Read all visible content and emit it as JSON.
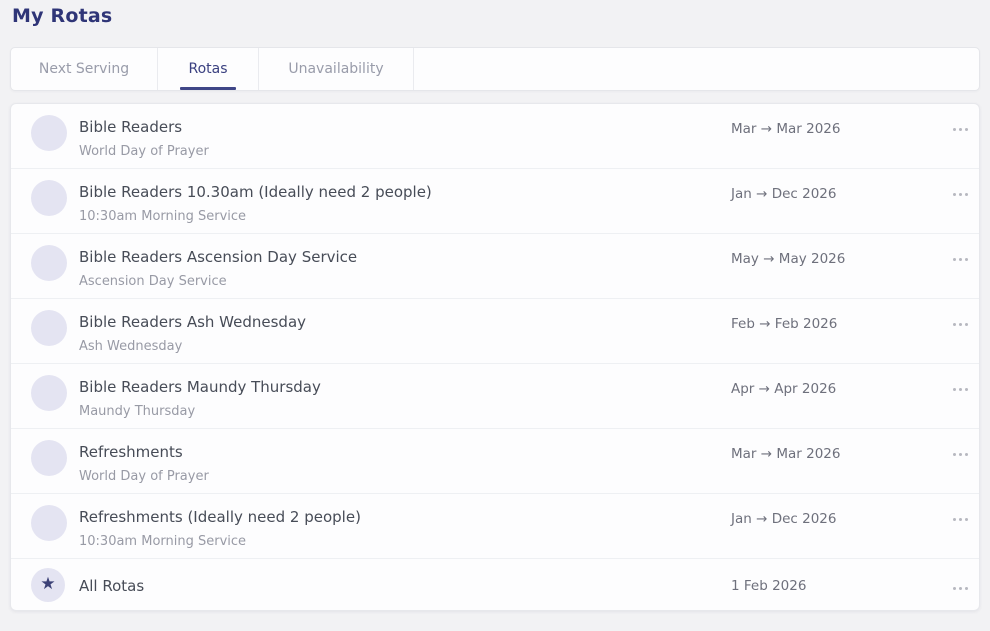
{
  "page": {
    "title": "My Rotas"
  },
  "tabs": {
    "items": [
      {
        "label": "Next Serving",
        "active": false
      },
      {
        "label": "Rotas",
        "active": true
      },
      {
        "label": "Unavailability",
        "active": false
      }
    ]
  },
  "rotas": [
    {
      "title": "Bible Readers",
      "subtitle": "World Day of Prayer",
      "dates": "Mar → Mar 2026"
    },
    {
      "title": "Bible Readers 10.30am (Ideally need 2 people)",
      "subtitle": "10:30am Morning Service",
      "dates": "Jan → Dec 2026"
    },
    {
      "title": "Bible Readers Ascension Day Service",
      "subtitle": "Ascension Day Service",
      "dates": "May → May 2026"
    },
    {
      "title": "Bible Readers Ash Wednesday",
      "subtitle": "Ash Wednesday",
      "dates": "Feb → Feb 2026"
    },
    {
      "title": "Bible Readers Maundy Thursday",
      "subtitle": "Maundy Thursday",
      "dates": "Apr → Apr 2026"
    },
    {
      "title": "Refreshments",
      "subtitle": "World Day of Prayer",
      "dates": "Mar → Mar 2026"
    },
    {
      "title": "Refreshments (Ideally need 2 people)",
      "subtitle": "10:30am Morning Service",
      "dates": "Jan → Dec 2026"
    }
  ],
  "all_rotas": {
    "title": "All Rotas",
    "date": "1 Feb 2026"
  },
  "icons": {
    "all_rotas_avatar": "star-icon",
    "row_menu": "ellipsis-icon",
    "star_glyph": "★"
  },
  "colors": {
    "navy_heading": "#2f3577",
    "active_tab_text": "#3a4080",
    "active_tab_underline": "#3f4687",
    "inactive_tab_text": "#999caa",
    "avatar_bg": "#e4e4f2",
    "title_text": "#474c57",
    "subtitle_text": "#989aa5",
    "date_text": "#6e707c",
    "page_bg": "#f2f2f4",
    "card_bg": "#fdfdfe"
  }
}
